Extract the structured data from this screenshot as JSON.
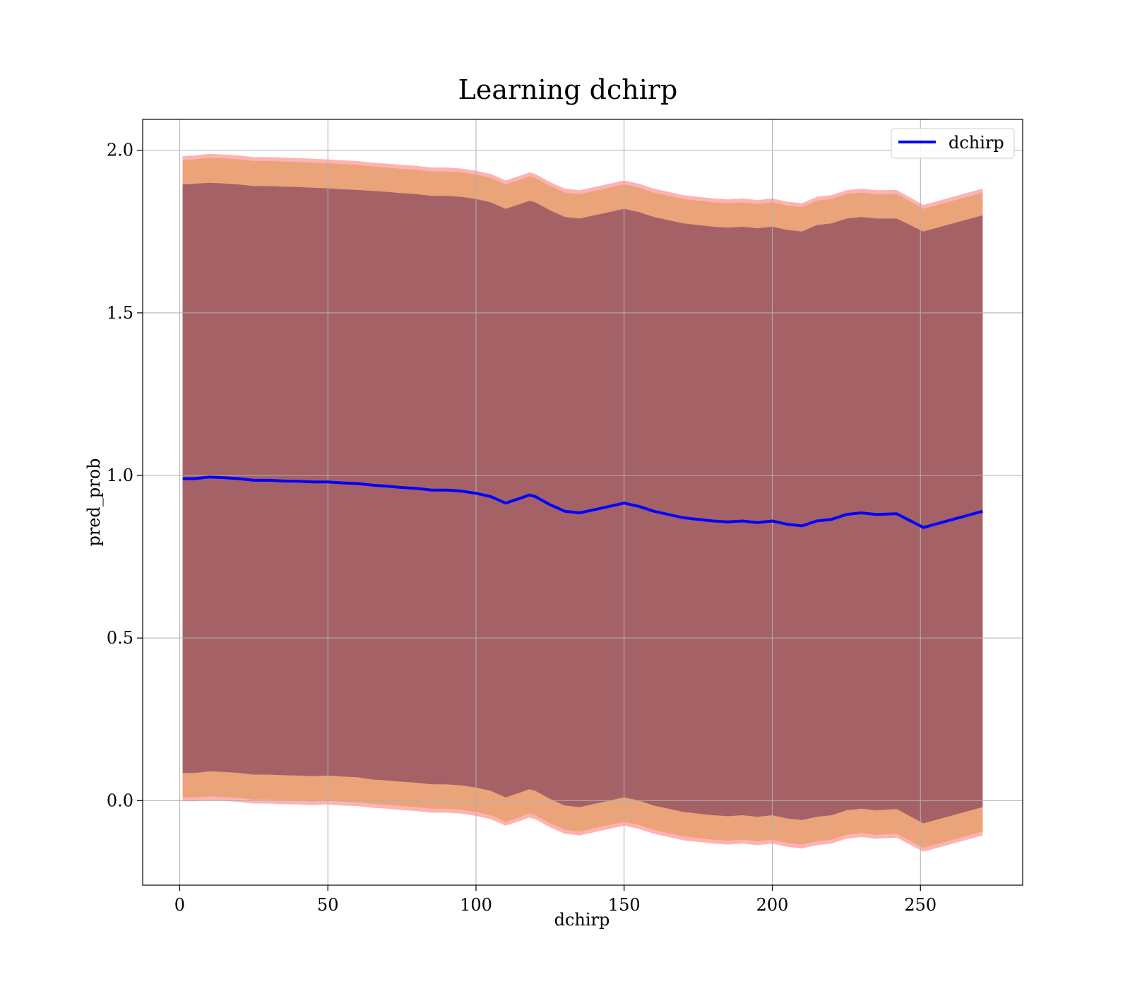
{
  "chart_data": {
    "type": "line",
    "title": "Learning dchirp",
    "xlabel": "dchirp",
    "ylabel": "pred_prob",
    "xlim": [
      -12.5,
      284.5
    ],
    "ylim": [
      -0.26,
      2.095
    ],
    "xticks": [
      0,
      50,
      100,
      150,
      200,
      250
    ],
    "xtick_labels": [
      "0",
      "50",
      "100",
      "150",
      "200",
      "250"
    ],
    "yticks": [
      0.0,
      0.5,
      1.0,
      1.5,
      2.0
    ],
    "ytick_labels": [
      "0.0",
      "0.5",
      "1.0",
      "1.5",
      "2.0"
    ],
    "grid": true,
    "legend": {
      "position": "top-right",
      "entries": [
        "dchirp"
      ]
    },
    "colors": {
      "line": "#0000ff",
      "band_outer": "#ff0000",
      "band_mid": "#e8a070",
      "band_inner": "#7a3a5a"
    },
    "series": [
      {
        "name": "dchirp",
        "x": [
          1,
          5,
          10,
          15,
          20,
          25,
          30,
          35,
          40,
          45,
          50,
          55,
          60,
          65,
          70,
          75,
          80,
          85,
          90,
          95,
          100,
          105,
          110,
          115,
          118,
          120,
          125,
          130,
          135,
          140,
          145,
          150,
          155,
          160,
          165,
          170,
          175,
          180,
          185,
          190,
          195,
          200,
          205,
          210,
          215,
          220,
          225,
          230,
          235,
          242,
          251,
          271
        ],
        "y": [
          0.99,
          0.99,
          0.995,
          0.993,
          0.99,
          0.985,
          0.985,
          0.983,
          0.982,
          0.98,
          0.98,
          0.977,
          0.975,
          0.97,
          0.967,
          0.963,
          0.96,
          0.955,
          0.955,
          0.952,
          0.945,
          0.935,
          0.915,
          0.93,
          0.94,
          0.935,
          0.91,
          0.89,
          0.885,
          0.895,
          0.905,
          0.915,
          0.905,
          0.89,
          0.88,
          0.87,
          0.865,
          0.86,
          0.857,
          0.86,
          0.855,
          0.86,
          0.85,
          0.845,
          0.86,
          0.865,
          0.88,
          0.885,
          0.88,
          0.882,
          0.84,
          0.89
        ],
        "band_inner": {
          "upper": [
            1.895,
            1.897,
            1.9,
            1.898,
            1.895,
            1.89,
            1.89,
            1.888,
            1.887,
            1.885,
            1.883,
            1.88,
            1.878,
            1.875,
            1.872,
            1.868,
            1.865,
            1.86,
            1.86,
            1.857,
            1.85,
            1.84,
            1.82,
            1.835,
            1.845,
            1.84,
            1.815,
            1.795,
            1.79,
            1.8,
            1.81,
            1.82,
            1.81,
            1.795,
            1.785,
            1.775,
            1.77,
            1.765,
            1.762,
            1.765,
            1.76,
            1.765,
            1.755,
            1.75,
            1.77,
            1.775,
            1.79,
            1.795,
            1.79,
            1.79,
            1.75,
            1.8
          ],
          "lower": [
            0.085,
            0.085,
            0.09,
            0.088,
            0.085,
            0.08,
            0.08,
            0.078,
            0.077,
            0.075,
            0.077,
            0.074,
            0.072,
            0.065,
            0.062,
            0.058,
            0.055,
            0.05,
            0.05,
            0.047,
            0.04,
            0.03,
            0.01,
            0.025,
            0.035,
            0.03,
            0.005,
            -0.015,
            -0.02,
            -0.01,
            0.0,
            0.01,
            0.0,
            -0.015,
            -0.025,
            -0.035,
            -0.04,
            -0.045,
            -0.048,
            -0.045,
            -0.05,
            -0.045,
            -0.055,
            -0.06,
            -0.05,
            -0.045,
            -0.03,
            -0.025,
            -0.03,
            -0.026,
            -0.07,
            -0.02
          ]
        },
        "band_mid": {
          "upper": [
            1.97,
            1.972,
            1.977,
            1.975,
            1.972,
            1.967,
            1.967,
            1.965,
            1.964,
            1.962,
            1.96,
            1.957,
            1.955,
            1.95,
            1.947,
            1.943,
            1.94,
            1.935,
            1.935,
            1.932,
            1.925,
            1.915,
            1.895,
            1.91,
            1.92,
            1.915,
            1.89,
            1.87,
            1.865,
            1.875,
            1.885,
            1.895,
            1.885,
            1.87,
            1.86,
            1.85,
            1.845,
            1.84,
            1.837,
            1.84,
            1.835,
            1.84,
            1.83,
            1.825,
            1.845,
            1.85,
            1.865,
            1.87,
            1.865,
            1.866,
            1.82,
            1.87
          ],
          "lower": [
            0.01,
            0.01,
            0.013,
            0.011,
            0.008,
            0.003,
            0.003,
            0.001,
            0.0,
            -0.002,
            0.0,
            -0.003,
            -0.005,
            -0.01,
            -0.013,
            -0.017,
            -0.02,
            -0.025,
            -0.025,
            -0.028,
            -0.035,
            -0.045,
            -0.065,
            -0.05,
            -0.04,
            -0.045,
            -0.07,
            -0.09,
            -0.095,
            -0.085,
            -0.075,
            -0.065,
            -0.075,
            -0.09,
            -0.1,
            -0.11,
            -0.115,
            -0.12,
            -0.123,
            -0.12,
            -0.125,
            -0.12,
            -0.13,
            -0.135,
            -0.125,
            -0.12,
            -0.105,
            -0.1,
            -0.105,
            -0.102,
            -0.145,
            -0.095
          ]
        },
        "band_outer": {
          "upper": [
            1.982,
            1.984,
            1.989,
            1.987,
            1.984,
            1.979,
            1.979,
            1.977,
            1.976,
            1.974,
            1.972,
            1.969,
            1.967,
            1.962,
            1.959,
            1.955,
            1.952,
            1.947,
            1.947,
            1.944,
            1.937,
            1.927,
            1.907,
            1.922,
            1.932,
            1.927,
            1.902,
            1.882,
            1.877,
            1.887,
            1.897,
            1.907,
            1.897,
            1.882,
            1.872,
            1.862,
            1.857,
            1.852,
            1.849,
            1.852,
            1.847,
            1.852,
            1.842,
            1.837,
            1.857,
            1.862,
            1.877,
            1.882,
            1.877,
            1.878,
            1.832,
            1.882
          ],
          "lower": [
            -0.002,
            -0.002,
            0.001,
            -0.001,
            -0.004,
            -0.009,
            -0.009,
            -0.011,
            -0.012,
            -0.014,
            -0.012,
            -0.015,
            -0.017,
            -0.022,
            -0.025,
            -0.029,
            -0.032,
            -0.037,
            -0.037,
            -0.04,
            -0.047,
            -0.057,
            -0.077,
            -0.062,
            -0.052,
            -0.057,
            -0.082,
            -0.102,
            -0.107,
            -0.097,
            -0.087,
            -0.077,
            -0.087,
            -0.102,
            -0.112,
            -0.122,
            -0.127,
            -0.132,
            -0.135,
            -0.132,
            -0.137,
            -0.132,
            -0.142,
            -0.147,
            -0.137,
            -0.132,
            -0.117,
            -0.112,
            -0.117,
            -0.114,
            -0.157,
            -0.107
          ]
        }
      }
    ]
  }
}
